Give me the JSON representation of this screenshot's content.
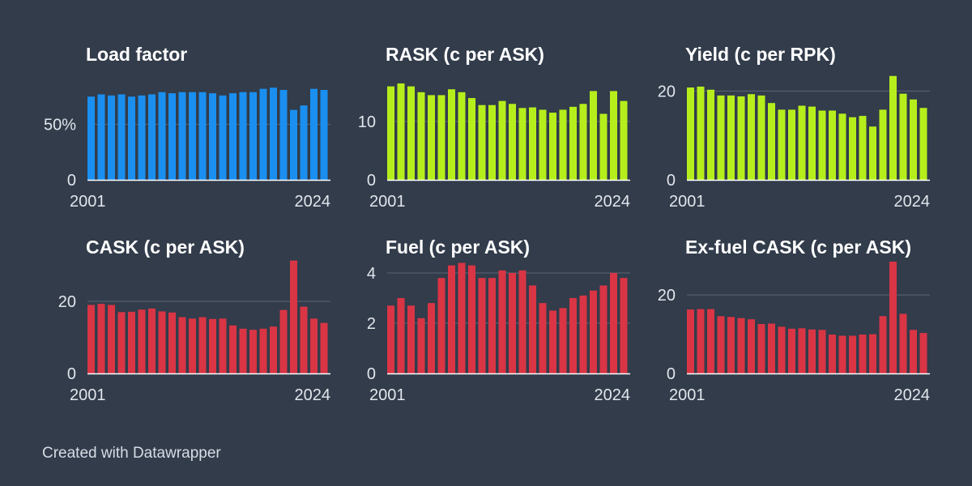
{
  "footer": "Created with Datawrapper",
  "colors": {
    "background": "#323c4b",
    "blue": "#1a8ff0",
    "green": "#b6ee1c",
    "red": "#d93545",
    "grid": "#5b6575"
  },
  "chart_data": [
    {
      "type": "bar",
      "title": "Load factor",
      "color": "#1a8ff0",
      "xlabels": [
        "2001",
        "2024"
      ],
      "x": [
        "2001",
        "2002",
        "2003",
        "2004",
        "2005",
        "2006",
        "2007",
        "2008",
        "2009",
        "2010",
        "2011",
        "2012",
        "2013",
        "2014",
        "2015",
        "2016",
        "2017",
        "2018",
        "2019",
        "2020",
        "2021",
        "2022",
        "2023",
        "2024"
      ],
      "ylim": [
        0,
        100
      ],
      "yticks": [
        {
          "value": 0,
          "label": "0"
        },
        {
          "value": 50,
          "label": "50%"
        }
      ],
      "values": [
        75,
        77,
        76,
        77,
        75,
        76,
        77,
        79,
        78,
        79,
        79,
        79,
        78,
        76,
        78,
        79,
        79,
        82,
        83,
        81,
        63,
        67,
        82,
        81
      ]
    },
    {
      "type": "bar",
      "title": "RASK (c per ASK)",
      "color": "#b6ee1c",
      "xlabels": [
        "2001",
        "2024"
      ],
      "x": [
        "2001",
        "2002",
        "2003",
        "2004",
        "2005",
        "2006",
        "2007",
        "2008",
        "2009",
        "2010",
        "2011",
        "2012",
        "2013",
        "2014",
        "2015",
        "2016",
        "2017",
        "2018",
        "2019",
        "2020",
        "2021",
        "2022",
        "2023",
        "2024"
      ],
      "ylim": [
        0,
        19
      ],
      "yticks": [
        {
          "value": 0,
          "label": "0"
        },
        {
          "value": 10,
          "label": "10"
        }
      ],
      "values": [
        16,
        16.5,
        16,
        15,
        14.5,
        14.5,
        15.5,
        15,
        14,
        12.8,
        12.8,
        13.5,
        13,
        12.3,
        12.4,
        12,
        11.5,
        12,
        12.5,
        13,
        15.2,
        11.3,
        15.2,
        13.5
      ]
    },
    {
      "type": "bar",
      "title": "Yield (c per RPK)",
      "color": "#b6ee1c",
      "xlabels": [
        "2001",
        "2024"
      ],
      "x": [
        "2001",
        "2002",
        "2003",
        "2004",
        "2005",
        "2006",
        "2007",
        "2008",
        "2009",
        "2010",
        "2011",
        "2012",
        "2013",
        "2014",
        "2015",
        "2016",
        "2017",
        "2018",
        "2019",
        "2020",
        "2021",
        "2022",
        "2023",
        "2024"
      ],
      "ylim": [
        0,
        25
      ],
      "yticks": [
        {
          "value": 0,
          "label": "0"
        },
        {
          "value": 20,
          "label": "20"
        }
      ],
      "values": [
        20.8,
        21,
        20.3,
        19,
        19,
        18.8,
        19.3,
        19,
        17.3,
        15.8,
        15.8,
        16.7,
        16.5,
        15.6,
        15.6,
        14.9,
        14.1,
        14.4,
        12,
        15.8,
        23.4,
        19.4,
        18.1,
        16.2
      ]
    },
    {
      "type": "bar",
      "title": "CASK (c per ASK)",
      "color": "#d93545",
      "xlabels": [
        "2001",
        "2024"
      ],
      "x": [
        "2001",
        "2002",
        "2003",
        "2004",
        "2005",
        "2006",
        "2007",
        "2008",
        "2009",
        "2010",
        "2011",
        "2012",
        "2013",
        "2014",
        "2015",
        "2016",
        "2017",
        "2018",
        "2019",
        "2020",
        "2021",
        "2022",
        "2023",
        "2024"
      ],
      "ylim": [
        0,
        31
      ],
      "yticks": [
        {
          "value": 0,
          "label": "0"
        },
        {
          "value": 20,
          "label": "20"
        }
      ],
      "values": [
        19,
        19.3,
        19,
        17,
        17.1,
        17.7,
        18,
        17.2,
        16.9,
        15.6,
        15.2,
        15.6,
        15.1,
        15.2,
        13.3,
        12.4,
        12.1,
        12.4,
        13,
        17.6,
        31.3,
        18.5,
        15.2,
        14
      ]
    },
    {
      "type": "bar",
      "title": "Fuel (c per ASK)",
      "color": "#d93545",
      "xlabels": [
        "2001",
        "2024"
      ],
      "x": [
        "2001",
        "2002",
        "2003",
        "2004",
        "2005",
        "2006",
        "2007",
        "2008",
        "2009",
        "2010",
        "2011",
        "2012",
        "2013",
        "2014",
        "2015",
        "2016",
        "2017",
        "2018",
        "2019",
        "2020",
        "2021",
        "2022",
        "2023",
        "2024"
      ],
      "ylim": [
        0,
        4.45
      ],
      "yticks": [
        {
          "value": 0,
          "label": "0"
        },
        {
          "value": 2,
          "label": "2"
        },
        {
          "value": 4,
          "label": "4"
        }
      ],
      "values": [
        2.7,
        3,
        2.7,
        2.2,
        2.8,
        3.8,
        4.3,
        4.4,
        4.3,
        3.8,
        3.8,
        4.1,
        4,
        4.1,
        3.5,
        2.8,
        2.5,
        2.6,
        3,
        3.1,
        3.3,
        3.5,
        4,
        3.8
      ]
    },
    {
      "type": "bar",
      "title": "Ex-fuel CASK (c per ASK)",
      "color": "#d93545",
      "xlabels": [
        "2001",
        "2024"
      ],
      "x": [
        "2001",
        "2002",
        "2003",
        "2004",
        "2005",
        "2006",
        "2007",
        "2008",
        "2009",
        "2010",
        "2011",
        "2012",
        "2013",
        "2014",
        "2015",
        "2016",
        "2017",
        "2018",
        "2019",
        "2020",
        "2021",
        "2022",
        "2023",
        "2024"
      ],
      "ylim": [
        0,
        28.5
      ],
      "yticks": [
        {
          "value": 0,
          "label": "0"
        },
        {
          "value": 20,
          "label": "20"
        }
      ],
      "values": [
        16.3,
        16.4,
        16.4,
        14.6,
        14.4,
        14.1,
        13.8,
        12.6,
        12.7,
        11.9,
        11.4,
        11.5,
        11.2,
        11.1,
        9.9,
        9.6,
        9.6,
        9.9,
        10,
        14.6,
        28.5,
        15.2,
        11.1,
        10.3
      ]
    }
  ]
}
